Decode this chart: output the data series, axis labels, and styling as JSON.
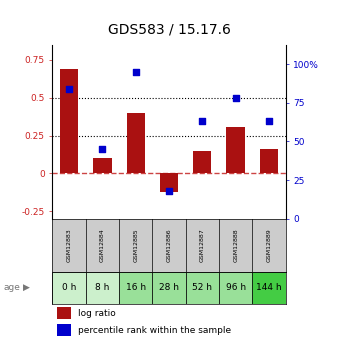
{
  "title": "GDS583 / 15.17.6",
  "samples": [
    "GSM12883",
    "GSM12884",
    "GSM12885",
    "GSM12886",
    "GSM12887",
    "GSM12888",
    "GSM12889"
  ],
  "ages": [
    "0 h",
    "8 h",
    "16 h",
    "28 h",
    "52 h",
    "96 h",
    "144 h"
  ],
  "log_ratio": [
    0.69,
    0.1,
    0.4,
    -0.12,
    0.15,
    0.31,
    0.16
  ],
  "percentile_rank_pct": [
    84,
    45,
    95,
    18,
    63,
    78,
    63
  ],
  "bar_color": "#AA1111",
  "dot_color": "#0000CC",
  "ylim_left": [
    -0.3,
    0.85
  ],
  "ylim_right": [
    0,
    112.5
  ],
  "yticks_left": [
    -0.25,
    0,
    0.25,
    0.5,
    0.75
  ],
  "ytick_labels_left": [
    "-0.25",
    "0",
    "0.25",
    "0.5",
    "0.75"
  ],
  "yticks_right_vals": [
    0,
    25,
    50,
    75,
    100
  ],
  "ytick_labels_right": [
    "0",
    "25",
    "50",
    "75",
    "100%"
  ],
  "hline_dotted": [
    0.25,
    0.5
  ],
  "zero_line_color": "#CC4444",
  "hline_color": "black",
  "age_bg_colors": [
    "#ccf0cc",
    "#ccf0cc",
    "#99e099",
    "#99e099",
    "#99e099",
    "#99e099",
    "#44cc44"
  ],
  "sample_bg_color": "#cccccc",
  "title_fontsize": 10,
  "axis_label_color_left": "#CC2222",
  "axis_label_color_right": "#0000CC",
  "bar_width": 0.55
}
